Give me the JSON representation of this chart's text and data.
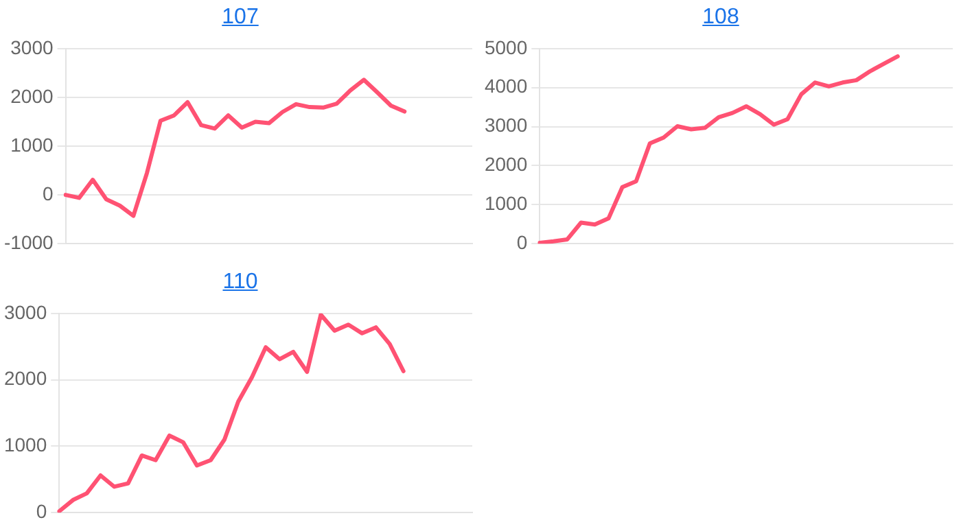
{
  "chart_data": [
    {
      "type": "line",
      "title": "107",
      "categories": [
        null,
        null,
        null,
        null,
        null,
        null,
        null,
        null,
        null,
        null,
        null,
        null,
        null,
        null,
        null,
        null,
        null,
        null,
        null,
        null,
        null,
        null,
        null,
        null,
        null,
        null,
        null,
        null,
        null,
        null,
        null
      ],
      "series": [
        {
          "color": "#ff5273",
          "values": [
            0,
            -60,
            310,
            -90,
            -220,
            -430,
            450,
            1520,
            1630,
            1900,
            1430,
            1360,
            1630,
            1380,
            1500,
            1470,
            1700,
            1860,
            1800,
            1790,
            1870,
            2140,
            2360,
            2100,
            1830,
            1710,
            null,
            null,
            null,
            null,
            null
          ]
        }
      ],
      "ylim": [
        -1000,
        3000
      ],
      "yticks": [
        -1000,
        0,
        1000,
        2000,
        3000
      ],
      "grid": "y",
      "legend": false,
      "marker": "none",
      "line_style": "solid"
    },
    {
      "type": "line",
      "title": "108",
      "categories": [
        null,
        null,
        null,
        null,
        null,
        null,
        null,
        null,
        null,
        null,
        null,
        null,
        null,
        null,
        null,
        null,
        null,
        null,
        null,
        null,
        null,
        null,
        null,
        null,
        null,
        null,
        null,
        null,
        null,
        null,
        null
      ],
      "series": [
        {
          "color": "#ff5273",
          "values": [
            20,
            60,
            110,
            540,
            490,
            650,
            1450,
            1600,
            2570,
            2720,
            3010,
            2930,
            2970,
            3240,
            3350,
            3520,
            3320,
            3050,
            3190,
            3830,
            4130,
            4030,
            4130,
            4190,
            4420,
            4610,
            4800,
            null,
            null,
            null,
            null
          ]
        }
      ],
      "ylim": [
        0,
        5000
      ],
      "yticks": [
        0,
        1000,
        2000,
        3000,
        4000,
        5000
      ],
      "grid": "y",
      "legend": false,
      "marker": "none",
      "line_style": "solid"
    },
    {
      "type": "line",
      "title": "110",
      "categories": [
        null,
        null,
        null,
        null,
        null,
        null,
        null,
        null,
        null,
        null,
        null,
        null,
        null,
        null,
        null,
        null,
        null,
        null,
        null,
        null,
        null,
        null,
        null,
        null,
        null,
        null,
        null,
        null,
        null,
        null,
        null
      ],
      "series": [
        {
          "color": "#ff5273",
          "values": [
            20,
            190,
            290,
            560,
            390,
            440,
            860,
            790,
            1160,
            1060,
            710,
            790,
            1100,
            1670,
            2040,
            2490,
            2310,
            2420,
            2120,
            2980,
            2740,
            2830,
            2700,
            2790,
            2540,
            2130,
            null,
            null,
            null,
            null,
            null
          ]
        }
      ],
      "ylim": [
        0,
        3000
      ],
      "yticks": [
        0,
        1000,
        2000,
        3000
      ],
      "grid": "y",
      "legend": false,
      "marker": "none",
      "line_style": "solid"
    }
  ]
}
